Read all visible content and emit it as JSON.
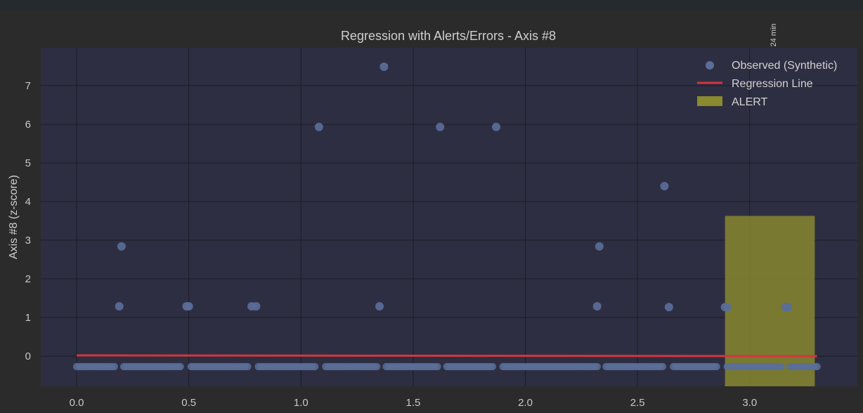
{
  "chart_data": {
    "type": "scatter",
    "title": "Regression with Alerts/Errors - Axis #8",
    "xlabel": "",
    "ylabel": "Axis #8 (z-score)",
    "xlim": [
      -0.16,
      3.48
    ],
    "ylim": [
      -0.78,
      7.98
    ],
    "x_ticks": [
      0.0,
      0.5,
      1.0,
      1.5,
      2.0,
      2.5,
      3.0
    ],
    "x_tick_labels": [
      "0.0",
      "0.5",
      "1.0",
      "1.5",
      "2.0",
      "2.5",
      "3.0"
    ],
    "y_ticks": [
      0,
      1,
      2,
      3,
      4,
      5,
      6,
      7
    ],
    "y_tick_labels": [
      "0",
      "1",
      "2",
      "3",
      "4",
      "5",
      "6",
      "7"
    ],
    "grid": true,
    "legend_position": "top-right",
    "baseline_y": -0.27,
    "baseline_x_ranges": [
      [
        0.0,
        0.17
      ],
      [
        0.21,
        0.47
      ],
      [
        0.51,
        0.77
      ],
      [
        0.81,
        1.07
      ],
      [
        1.11,
        1.34
      ],
      [
        1.38,
        1.61
      ],
      [
        1.65,
        1.86
      ],
      [
        1.9,
        2.32
      ],
      [
        2.36,
        2.62
      ],
      [
        2.66,
        2.86
      ],
      [
        2.9,
        3.14
      ],
      [
        3.18,
        3.3
      ]
    ],
    "series": [
      {
        "name": "Observed (Synthetic)",
        "color": "#5a6e98",
        "points": [
          [
            0.2,
            2.84
          ],
          [
            0.19,
            1.29
          ],
          [
            0.49,
            1.29
          ],
          [
            0.5,
            1.29
          ],
          [
            0.78,
            1.29
          ],
          [
            0.8,
            1.29
          ],
          [
            1.08,
            5.93
          ],
          [
            1.35,
            1.29
          ],
          [
            1.37,
            7.49
          ],
          [
            1.62,
            5.93
          ],
          [
            1.87,
            5.93
          ],
          [
            2.33,
            2.84
          ],
          [
            2.32,
            1.29
          ],
          [
            2.62,
            4.4
          ],
          [
            2.64,
            1.27
          ],
          [
            2.89,
            1.27
          ],
          [
            2.9,
            1.27
          ],
          [
            3.16,
            1.27
          ],
          [
            3.17,
            1.27
          ]
        ]
      },
      {
        "name": "Regression Line",
        "color": "#d2373c",
        "type": "line",
        "x": [
          0.0,
          3.3
        ],
        "y": [
          0.02,
          0.0
        ]
      }
    ],
    "alert_regions": [
      {
        "name": "ALERT",
        "color": "#8a8a2e",
        "x0": 2.89,
        "x1": 3.29,
        "y_top": 3.63,
        "label": "24 min"
      }
    ]
  }
}
